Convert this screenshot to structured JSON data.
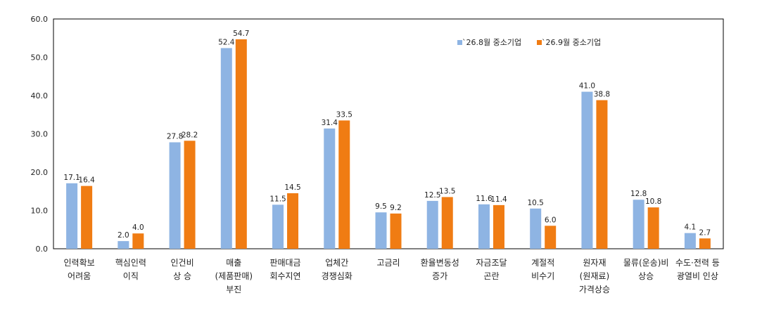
{
  "chart_data": {
    "type": "bar",
    "title": "",
    "xlabel": "",
    "ylabel": "",
    "ylim": [
      0,
      60
    ],
    "yticks": [
      "0.0",
      "10.0",
      "20.0",
      "30.0",
      "40.0",
      "50.0",
      "60.0"
    ],
    "grid": false,
    "legend_position": "top-right",
    "categories": [
      [
        "인력확보",
        "어려움"
      ],
      [
        "핵심인력",
        "이직"
      ],
      [
        "인건비",
        "상 승"
      ],
      [
        "매출",
        "(제품판매)",
        "부진"
      ],
      [
        "판매대금",
        "회수지연"
      ],
      [
        "업체간",
        "경쟁심화"
      ],
      [
        "고금리"
      ],
      [
        "환율변동성",
        "증가"
      ],
      [
        "자금조달",
        "곤란"
      ],
      [
        "계절적",
        "비수기"
      ],
      [
        "원자재",
        "(원재료)",
        "가격상승"
      ],
      [
        "물류(운송)비",
        "상승"
      ],
      [
        "수도·전력 등",
        "광열비 인상"
      ]
    ],
    "series": [
      {
        "name": "`26.8월 중소기업",
        "color": "#8eb4e3",
        "values": [
          17.1,
          2.0,
          27.8,
          52.4,
          11.5,
          31.4,
          9.5,
          12.5,
          11.6,
          10.5,
          41.0,
          12.8,
          4.1
        ],
        "labels": [
          "17.1",
          "2.0",
          "27.8",
          "52.4",
          "11.5",
          "31.4",
          "9.5",
          "12.5",
          "11.6",
          "10.5",
          "41.0",
          "12.8",
          "4.1"
        ]
      },
      {
        "name": "`26.9월 중소기업",
        "color": "#f07c13",
        "values": [
          16.4,
          4.0,
          28.2,
          54.7,
          14.5,
          33.5,
          9.2,
          13.5,
          11.4,
          6.0,
          38.8,
          10.8,
          2.7
        ],
        "labels": [
          "16.4",
          "4.0",
          "28.2",
          "54.7",
          "14.5",
          "33.5",
          "9.2",
          "13.5",
          "11.4",
          "6.0",
          "38.8",
          "10.8",
          "2.7"
        ]
      }
    ]
  }
}
